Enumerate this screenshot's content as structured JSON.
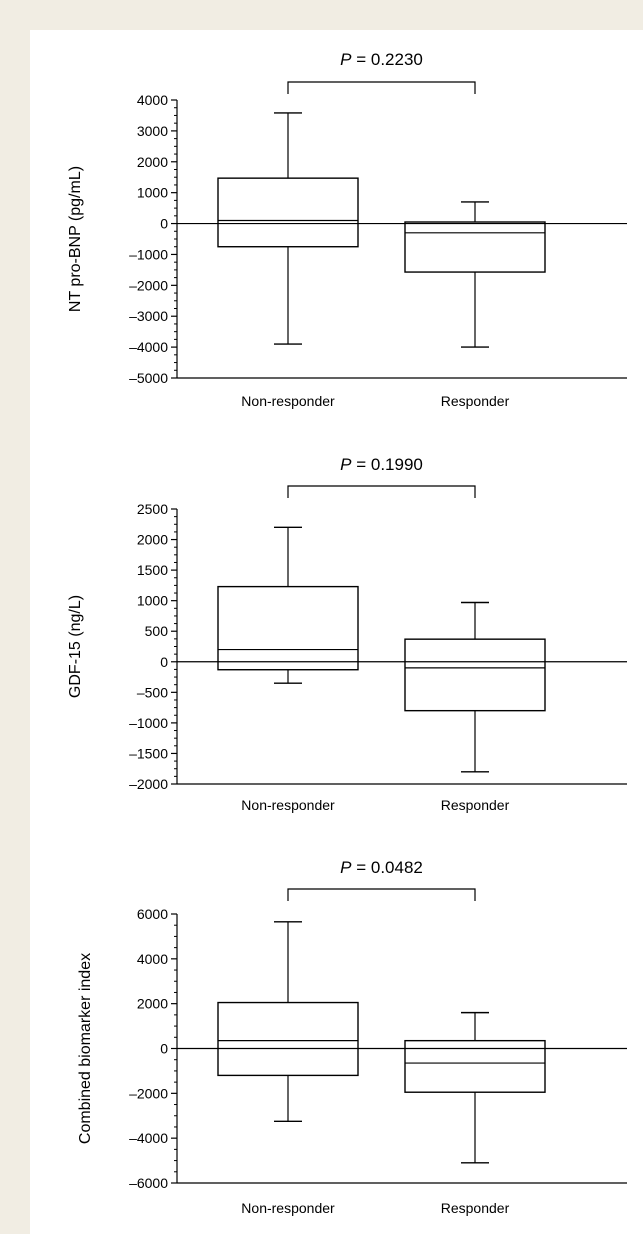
{
  "chart_data": [
    {
      "type": "box",
      "ylabel": "NT pro-BNP (pg/mL)",
      "categories": [
        "Non-responder",
        "Responder"
      ],
      "p_value_label": "P",
      "p_value_text": " = 0.2230",
      "ylim": [
        -5000,
        4000
      ],
      "yticks": [
        -5000,
        -4000,
        -3000,
        -2000,
        -1000,
        0,
        1000,
        2000,
        3000,
        4000
      ],
      "reference_line": 0,
      "boxes": [
        {
          "name": "Non-responder",
          "min": -3900,
          "q1": -750,
          "median": 100,
          "q3": 1470,
          "max": 3580
        },
        {
          "name": "Responder",
          "min": -4000,
          "q1": -1570,
          "median": -300,
          "q3": 50,
          "max": 700
        }
      ]
    },
    {
      "type": "box",
      "ylabel": "GDF-15 (ng/L)",
      "categories": [
        "Non-responder",
        "Responder"
      ],
      "p_value_label": "P",
      "p_value_text": " = 0.1990",
      "ylim": [
        -2000,
        2500
      ],
      "yticks": [
        -2000,
        -1500,
        -1000,
        -500,
        0,
        500,
        1000,
        1500,
        2000,
        2500
      ],
      "reference_line": 0,
      "boxes": [
        {
          "name": "Non-responder",
          "min": -350,
          "q1": -130,
          "median": 200,
          "q3": 1230,
          "max": 2200
        },
        {
          "name": "Responder",
          "min": -1800,
          "q1": -800,
          "median": -100,
          "q3": 370,
          "max": 970
        }
      ]
    },
    {
      "type": "box",
      "ylabel": "Combined biomarker index",
      "categories": [
        "Non-responder",
        "Responder"
      ],
      "p_value_label": "P",
      "p_value_text": " = 0.0482",
      "ylim": [
        -6000,
        6000
      ],
      "yticks": [
        -6000,
        -4000,
        -2000,
        0,
        2000,
        4000,
        6000
      ],
      "reference_line": 0,
      "boxes": [
        {
          "name": "Non-responder",
          "min": -3250,
          "q1": -1200,
          "median": 350,
          "q3": 2050,
          "max": 5650
        },
        {
          "name": "Responder",
          "min": -5100,
          "q1": -1950,
          "median": -650,
          "q3": 350,
          "max": 1600
        }
      ]
    }
  ]
}
